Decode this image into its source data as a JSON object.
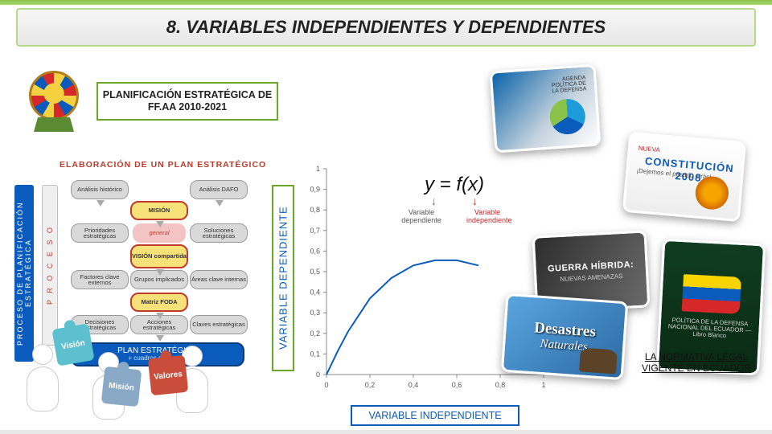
{
  "title": "8. VARIABLES INDEPENDIENTES Y DEPENDIENTES",
  "plan_box": {
    "line1": "PLANIFICACIÓN ESTRATÉGICA DE",
    "line2": "FF.AA 2010-2021"
  },
  "proc": {
    "side_label": "PROCESO DE PLANIFICACIÓN ESTRATÉGICA",
    "proceso": "P R O C E S O",
    "elab": "ELABORACIÓN DE UN PLAN ESTRATÉGICO",
    "boxes": {
      "analisis_historico": "Análisis histórico",
      "analisis_dafo": "Análisis DAFO",
      "mision": "MISIÓN",
      "prioridades": "Prioridades estratégicas",
      "general": "general",
      "soluciones": "Soluciones estratégicas",
      "vision": "VISIÓN compartida",
      "factores_ext": "Factores clave externos",
      "grupos": "Grupos implicados",
      "areas": "Áreas clave internas",
      "foda": "Matriz FODA",
      "decisiones": "Decisiones estratégicas",
      "acciones": "Acciones estratégicas",
      "claves": "Claves estratégicas",
      "plan": "PLAN ESTRATÉGICO",
      "cuadros": "+ cuadros de mando"
    }
  },
  "chart": {
    "type": "line",
    "dep_label": "VARIABLE DEPENDIENTE",
    "indep_label": "VARIABLE INDEPENDIENTE",
    "equation": "y = f(x)",
    "eq_dep": "Variable dependiente",
    "eq_indep": "Variable independiente",
    "xlim": [
      0,
      1
    ],
    "ylim": [
      0,
      1
    ],
    "xtick_step": 0.2,
    "ytick_step": 0.1,
    "xticks": [
      "0",
      "0,2",
      "0,4",
      "0,6",
      "0,8",
      "1"
    ],
    "yticks": [
      "0",
      "0,1",
      "0,2",
      "0,3",
      "0,4",
      "0,5",
      "0,6",
      "0,7",
      "0,8",
      "0,9",
      "1"
    ],
    "curve": [
      [
        0,
        0
      ],
      [
        0.05,
        0.11
      ],
      [
        0.1,
        0.21
      ],
      [
        0.2,
        0.37
      ],
      [
        0.3,
        0.47
      ],
      [
        0.4,
        0.53
      ],
      [
        0.5,
        0.555
      ],
      [
        0.6,
        0.555
      ],
      [
        0.7,
        0.53
      ]
    ],
    "axis_color": "#888888",
    "tick_color": "#888888",
    "curve_color": "#0a5bbb",
    "curve_width": 2,
    "background": "#ffffff",
    "tick_fontsize": 9
  },
  "tiles": {
    "t1_title": "AGENDA POLÍTICA DE LA DEFENSA",
    "t2_brand": "NUEVA",
    "t2_title": "CONSTITUCIÓN 2008",
    "t2_sub": "¡Dejemos el pasado atrás!",
    "t3_title": "GUERRA HÍBRIDA:",
    "t3_sub": "NUEVAS AMENAZAS",
    "t4_line1": "Desastres",
    "t4_line2": "Naturales",
    "t5_text": "POLÍTICA DE LA DEFENSA NACIONAL DEL ECUADOR — Libro Blanco"
  },
  "normativa": {
    "line1": "LA NORMATIVA LEGAL",
    "line2": "VIGENTE EN ECUADOR"
  },
  "puzzle": {
    "p1": "Visión",
    "p2": "Misión",
    "p3": "Valores"
  },
  "colors": {
    "green": "#6aa829",
    "blue": "#0a5bbb",
    "red": "#c0392b"
  }
}
